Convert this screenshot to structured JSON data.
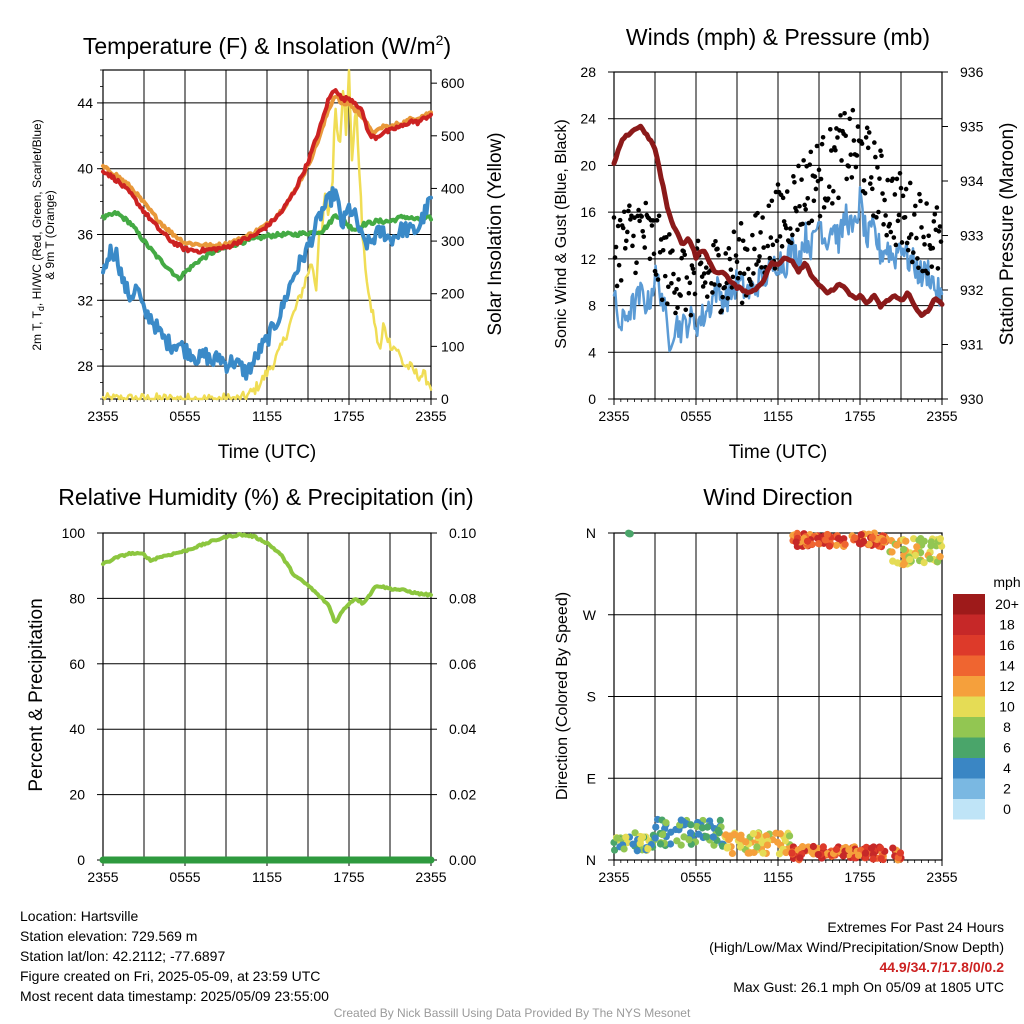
{
  "chart_data": [
    {
      "type": "line",
      "title": "Temperature (F) & Insolation (W/m²)",
      "title_main": "Temperature (F) & Insolation (W/m",
      "title_sup": "2",
      "title_end": ")",
      "xlabel": "Time (UTC)",
      "ylabel_left_line1": "2m T, T",
      "ylabel_left_sub": "d",
      "ylabel_left_rest": ", HI/WC (Red, Green, Scarlet/Blue)",
      "ylabel_left_line2": "& 9m T (Orange)",
      "ylabel_right": "Solar Insolation (Yellow)",
      "x_ticks": [
        "2355",
        "0555",
        "1155",
        "1755",
        "2355"
      ],
      "ylim_left": [
        26,
        46
      ],
      "yticks_left": [
        "28",
        "32",
        "36",
        "40",
        "44"
      ],
      "ylim_right": [
        0,
        625
      ],
      "yticks_right": [
        "0",
        "100",
        "200",
        "300",
        "400",
        "500",
        "600"
      ],
      "grid": true,
      "series": [
        {
          "color": "#e8983a",
          "axis": "left",
          "x": [
            0,
            1,
            2,
            3,
            4,
            5,
            6,
            7,
            8,
            9,
            10,
            11,
            12,
            13,
            14,
            15,
            15.5,
            16,
            16.5,
            17,
            17.5,
            18,
            18.5,
            19,
            19.5,
            20,
            20.5,
            21,
            21.5,
            22,
            22.5,
            23,
            24
          ],
          "y": [
            40.1,
            39.6,
            38.9,
            37.9,
            36.9,
            36.1,
            35.5,
            35.4,
            35.3,
            35.4,
            35.7,
            36.1,
            36.6,
            37.4,
            38.6,
            40.2,
            41.2,
            42.3,
            43.6,
            44.5,
            43.9,
            44.0,
            43.5,
            43.2,
            42.4,
            42.2,
            42.6,
            42.5,
            42.7,
            42.8,
            43.0,
            43.1,
            43.4
          ]
        },
        {
          "color": "#cc2222",
          "axis": "left",
          "x": [
            0,
            1,
            2,
            3,
            4,
            5,
            6,
            7,
            8,
            9,
            10,
            11,
            12,
            13,
            14,
            15,
            15.5,
            16,
            16.5,
            17,
            17.5,
            18,
            18.5,
            19,
            19.5,
            20,
            20.5,
            21,
            21.5,
            22,
            22.5,
            23,
            24
          ],
          "y": [
            39.9,
            39.3,
            38.5,
            37.4,
            36.4,
            35.6,
            35.1,
            35.0,
            35.1,
            35.2,
            35.6,
            35.9,
            36.5,
            37.3,
            38.6,
            40.4,
            41.6,
            42.8,
            44.2,
            44.9,
            44.2,
            44.3,
            44.0,
            43.4,
            42.0,
            41.9,
            42.2,
            42.3,
            42.5,
            42.6,
            42.9,
            42.8,
            43.3
          ]
        },
        {
          "color": "#44aa44",
          "axis": "left",
          "x": [
            0,
            1,
            2,
            3,
            4,
            5,
            5.5,
            6,
            7,
            8,
            9,
            10,
            11,
            12,
            13,
            14,
            15,
            16,
            16.5,
            17,
            17.5,
            18,
            18.5,
            19,
            20,
            21,
            22,
            23,
            24
          ],
          "y": [
            37.0,
            37.3,
            36.7,
            35.6,
            34.6,
            33.8,
            33.3,
            33.7,
            34.4,
            34.9,
            35.2,
            35.5,
            35.7,
            35.9,
            36.0,
            36.0,
            36.1,
            36.2,
            36.6,
            37.2,
            37.0,
            36.5,
            36.3,
            36.6,
            36.8,
            36.8,
            37.1,
            36.9,
            37.0
          ]
        },
        {
          "color": "#3a8ac8",
          "axis": "left",
          "x": [
            0,
            0.5,
            1,
            1.5,
            2,
            2.5,
            3,
            3.5,
            4,
            4.5,
            5,
            5.5,
            6,
            6.5,
            7,
            7.5,
            8,
            8.5,
            9,
            9.5,
            10,
            10.5,
            11,
            11.5,
            12,
            12.5,
            13,
            13.5,
            14,
            14.5,
            15,
            15.5,
            16,
            16.5,
            17,
            17.5,
            18,
            18.5,
            19,
            19.5,
            20,
            20.5,
            21,
            21.5,
            22,
            22.5,
            23,
            23.5,
            24
          ],
          "y": [
            33.6,
            35.0,
            34.8,
            33.0,
            32.2,
            32.8,
            31.2,
            31.0,
            30.2,
            29.6,
            29.3,
            29.4,
            29.0,
            28.8,
            28.4,
            28.7,
            28.2,
            28.6,
            28.1,
            28.3,
            28.0,
            27.6,
            28.2,
            29.0,
            29.6,
            30.4,
            31.2,
            32.5,
            33.6,
            34.4,
            35.2,
            36.3,
            37.4,
            38.0,
            38.6,
            36.5,
            37.6,
            37.0,
            35.6,
            35.4,
            36.0,
            36.2,
            35.7,
            36.0,
            36.4,
            36.2,
            36.3,
            37.2,
            38.2
          ]
        },
        {
          "color": "#f0dd55",
          "axis": "right",
          "x": [
            0,
            5,
            10,
            10.5,
            11,
            11.5,
            12,
            12.5,
            13,
            13.5,
            14,
            14.5,
            15,
            15.3,
            15.6,
            15.8,
            16,
            16.2,
            16.5,
            16.8,
            17,
            17.3,
            17.6,
            17.8,
            18,
            18.2,
            18.5,
            18.8,
            19,
            19.3,
            19.5,
            19.8,
            20,
            20.3,
            20.5,
            21,
            21.5,
            22,
            22.5,
            23,
            23.5,
            24
          ],
          "y": [
            0,
            0,
            0,
            5,
            15,
            30,
            50,
            70,
            95,
            130,
            165,
            200,
            240,
            260,
            210,
            320,
            300,
            390,
            350,
            420,
            560,
            470,
            610,
            500,
            620,
            450,
            560,
            420,
            300,
            230,
            180,
            160,
            120,
            90,
            140,
            105,
            95,
            65,
            60,
            45,
            45,
            25
          ]
        }
      ]
    },
    {
      "type": "line",
      "title": "Winds (mph) & Pressure (mb)",
      "xlabel": "Time (UTC)",
      "ylabel_left": "Sonic Wind & Gust (Blue, Black)",
      "ylabel_right": "Station Pressure (Maroon)",
      "x_ticks": [
        "2355",
        "0555",
        "1155",
        "1755",
        "2355"
      ],
      "ylim_left": [
        0,
        28
      ],
      "yticks_left": [
        "0",
        "4",
        "8",
        "12",
        "16",
        "20",
        "24",
        "28"
      ],
      "ylim_right": [
        930,
        936
      ],
      "yticks_right": [
        "930",
        "931",
        "932",
        "933",
        "934",
        "935",
        "936"
      ],
      "grid": true,
      "series": [
        {
          "color": "#5b9bd5",
          "axis": "left",
          "x": [
            0,
            0.5,
            1,
            1.5,
            2,
            2.5,
            3,
            3.5,
            4,
            4.5,
            5,
            5.5,
            6,
            6.5,
            7,
            7.5,
            8,
            8.5,
            9,
            9.5,
            10,
            10.5,
            11,
            11.5,
            12,
            12.5,
            13,
            13.5,
            14,
            14.5,
            15,
            15.5,
            16,
            16.5,
            17,
            17.5,
            18,
            18.5,
            19,
            19.5,
            20,
            20.5,
            21,
            21.5,
            22,
            22.5,
            23,
            23.5,
            24
          ],
          "y": [
            8.5,
            6.0,
            7.5,
            8.0,
            9.0,
            8.0,
            10.5,
            9.0,
            5.0,
            6.5,
            6.0,
            6.8,
            6.5,
            7.0,
            8.0,
            9.5,
            8.5,
            9.0,
            10.0,
            9.5,
            9.0,
            10.0,
            10.5,
            11.0,
            12.0,
            11.5,
            13.0,
            12.0,
            14.0,
            13.0,
            15.5,
            13.5,
            15.0,
            13.5,
            16.0,
            14.0,
            17.0,
            13.5,
            14.5,
            12.5,
            13.0,
            12.0,
            13.5,
            12.0,
            11.5,
            10.5,
            11.0,
            9.5,
            8.5
          ]
        },
        {
          "color": "#8b1a1a",
          "axis": "right",
          "x": [
            0,
            0.5,
            1,
            1.5,
            2,
            2.5,
            3,
            3.5,
            4,
            4.5,
            5,
            5.5,
            6,
            6.5,
            7,
            7.5,
            8,
            8.5,
            9,
            9.5,
            10,
            10.5,
            11,
            11.5,
            12,
            12.5,
            13,
            13.5,
            14,
            14.5,
            15,
            15.5,
            16,
            16.5,
            17,
            17.5,
            18,
            18.5,
            19,
            19.5,
            20,
            20.5,
            21,
            21.5,
            22,
            22.5,
            23,
            23.5,
            24
          ],
          "y": [
            934.3,
            934.7,
            934.85,
            934.95,
            935.0,
            934.8,
            934.6,
            934.0,
            933.4,
            933.1,
            932.85,
            932.95,
            932.6,
            932.75,
            932.5,
            932.3,
            932.35,
            932.15,
            932.05,
            932.0,
            931.95,
            932.05,
            932.2,
            932.5,
            932.45,
            932.6,
            932.55,
            932.35,
            932.5,
            932.25,
            932.1,
            931.95,
            932.0,
            932.1,
            932.0,
            931.85,
            931.9,
            931.75,
            931.9,
            931.7,
            931.8,
            931.9,
            931.8,
            931.95,
            931.7,
            931.55,
            931.6,
            931.85,
            931.75
          ]
        }
      ],
      "gust_points": {
        "color": "#000000",
        "count": 320,
        "trend_x": [
          0,
          2,
          4,
          6,
          8,
          10,
          12,
          14,
          16,
          17,
          18,
          19,
          20,
          22,
          24
        ],
        "trend_y": [
          13,
          14.5,
          11,
          10,
          11,
          12,
          15,
          18,
          20,
          21.5,
          21,
          19,
          17,
          15,
          13
        ]
      }
    },
    {
      "type": "line",
      "title": "Relative Humidity (%) & Precipitation (in)",
      "ylabel_left": "Percent & Precipitation",
      "x_ticks": [
        "2355",
        "0555",
        "1155",
        "1755",
        "2355"
      ],
      "ylim_left": [
        0,
        100
      ],
      "yticks_left": [
        "0",
        "20",
        "40",
        "60",
        "80",
        "100"
      ],
      "ylim_right": [
        0.0,
        0.1
      ],
      "yticks_right": [
        "0.00",
        "0.02",
        "0.04",
        "0.06",
        "0.08",
        "0.10"
      ],
      "grid": true,
      "series": [
        {
          "color": "#8cc63f",
          "axis": "left",
          "x": [
            0,
            1,
            2,
            3,
            3.5,
            4,
            5,
            6,
            7,
            8,
            9,
            10,
            11,
            12,
            13,
            14,
            15,
            16,
            16.5,
            17,
            17.5,
            18,
            18.5,
            19,
            19.5,
            20,
            21,
            22,
            23,
            24
          ],
          "y": [
            90.5,
            92.5,
            93.8,
            93.5,
            91.5,
            92.5,
            93.5,
            94.5,
            96.0,
            97.5,
            98.8,
            99.5,
            99.0,
            97.0,
            93.5,
            87.0,
            84.0,
            80.0,
            78.0,
            72.5,
            76.0,
            78.5,
            80.0,
            78.5,
            81.0,
            84.0,
            83.0,
            82.5,
            81.5,
            81.0
          ]
        },
        {
          "color": "#2e9a3e",
          "axis": "right",
          "x": [
            0,
            24
          ],
          "y": [
            0.0,
            0.0
          ]
        }
      ]
    },
    {
      "type": "scatter",
      "title": "Wind Direction",
      "ylabel_left": "Direction (Colored By Speed)",
      "x_ticks": [
        "2355",
        "0555",
        "1155",
        "1755",
        "2355"
      ],
      "y_ticks": [
        "N",
        "E",
        "S",
        "W",
        "N"
      ],
      "ylim": [
        0,
        360
      ],
      "grid": true,
      "legend_title": "mph",
      "legend_labels": [
        "20+",
        "18",
        "16",
        "14",
        "12",
        "10",
        "8",
        "6",
        "4",
        "2",
        "0"
      ],
      "legend_colors": [
        "#9e1a1a",
        "#c62828",
        "#dd3a2a",
        "#ef6530",
        "#f5a03c",
        "#e5dc55",
        "#92c652",
        "#4aa56a",
        "#3a86c4",
        "#7ab8e2",
        "#bfe4f7"
      ],
      "point_groups": [
        {
          "x_range": [
            0,
            3
          ],
          "dir_range": [
            10,
            30
          ],
          "speed_range": [
            4,
            12
          ]
        },
        {
          "x_range": [
            3,
            8
          ],
          "dir_range": [
            15,
            45
          ],
          "speed_range": [
            4,
            9
          ]
        },
        {
          "x_range": [
            8,
            13
          ],
          "dir_range": [
            5,
            30
          ],
          "speed_range": [
            9,
            14
          ]
        },
        {
          "x_range": [
            13,
            21
          ],
          "dir_range": [
            0,
            15
          ],
          "speed_range": [
            12,
            20
          ]
        },
        {
          "x_range": [
            13,
            20
          ],
          "dir_range": [
            345,
            360
          ],
          "speed_range": [
            12,
            20
          ]
        },
        {
          "x_range": [
            20,
            24
          ],
          "dir_range": [
            325,
            355
          ],
          "speed_range": [
            8,
            14
          ]
        },
        {
          "x_range": [
            1,
            1.2
          ],
          "dir_range": [
            359,
            360
          ],
          "speed_range": [
            6,
            7
          ]
        }
      ]
    }
  ],
  "info_left": {
    "location": "Location: Hartsville",
    "elevation": "Station elevation: 729.569 m",
    "latlon": "Station lat/lon: 42.2112; -77.6897",
    "created": "Figure created on Fri, 2025-05-09, at 23:59 UTC",
    "recent": "Most recent data timestamp: 2025/05/09 23:55:00"
  },
  "info_right": {
    "heading": "Extremes For Past 24 Hours",
    "subheading": "(High/Low/Max Wind/Precipitation/Snow Depth)",
    "values": "44.9/34.7/17.8/0/0.2",
    "max_gust": "Max Gust: 26.1 mph On 05/09 at 1805 UTC",
    "values_color": "#cc2222"
  },
  "credit": "Created By Nick Bassill Using Data Provided By The NYS Mesonet"
}
